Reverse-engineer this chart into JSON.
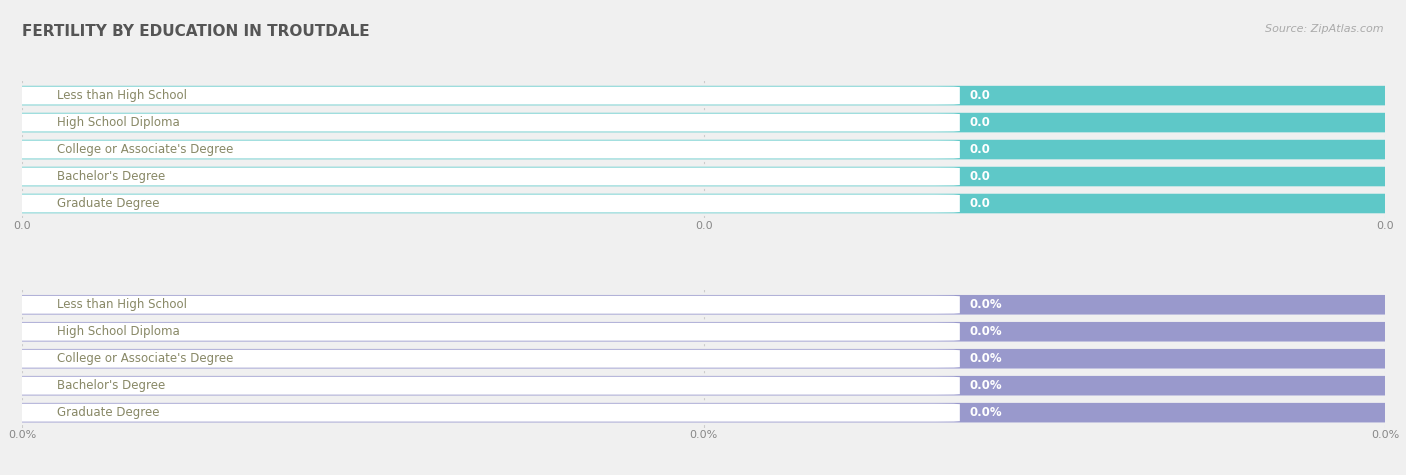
{
  "title": "FERTILITY BY EDUCATION IN TROUTDALE",
  "source": "Source: ZipAtlas.com",
  "categories": [
    "Less than High School",
    "High School Diploma",
    "College or Associate's Degree",
    "Bachelor's Degree",
    "Graduate Degree"
  ],
  "top_values": [
    0.0,
    0.0,
    0.0,
    0.0,
    0.0
  ],
  "bottom_values": [
    0.0,
    0.0,
    0.0,
    0.0,
    0.0
  ],
  "top_labels": [
    "0.0",
    "0.0",
    "0.0",
    "0.0",
    "0.0"
  ],
  "bottom_labels": [
    "0.0%",
    "0.0%",
    "0.0%",
    "0.0%",
    "0.0%"
  ],
  "top_bar_color": "#5ec8c8",
  "top_bar_bg": "#e8f5f5",
  "bottom_bar_color": "#9999cc",
  "bottom_bar_bg": "#e5e5f5",
  "top_axis_ticks": [
    "0.0",
    "0.0",
    "0.0"
  ],
  "bottom_axis_ticks": [
    "0.0%",
    "0.0%",
    "0.0%"
  ],
  "background_color": "#f0f0f0",
  "row_sep_color": "#d8d8d8",
  "title_color": "#555555",
  "source_color": "#aaaaaa",
  "value_label_color": "#ffffff",
  "category_label_color": "#888866",
  "white_pill_color": "#ffffff",
  "title_fontsize": 11,
  "source_fontsize": 8,
  "bar_label_fontsize": 8.5,
  "category_fontsize": 8.5,
  "tick_fontsize": 8,
  "grid_color": "#cccccc"
}
